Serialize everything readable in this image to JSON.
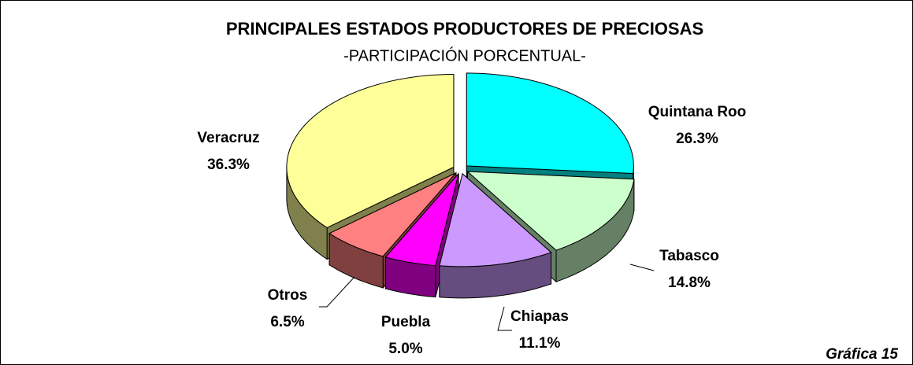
{
  "chart_data": {
    "type": "pie3d",
    "title": "PRINCIPALES ESTADOS PRODUCTORES DE PRECIOSAS",
    "subtitle": "-PARTICIPACIÓN PORCENTUAL-",
    "caption": "Gráfica 15",
    "categories": [
      "Quintana Roo",
      "Tabasco",
      "Chiapas",
      "Puebla",
      "Otros",
      "Veracruz"
    ],
    "values": [
      26.3,
      14.8,
      11.1,
      5.0,
      6.5,
      36.3
    ],
    "value_labels": [
      "26.3%",
      "14.8%",
      "11.1%",
      "5.0%",
      "6.5%",
      "36.3%"
    ],
    "colors": [
      "#00ffff",
      "#ccffcc",
      "#cc99ff",
      "#ff00ff",
      "#ff8080",
      "#ffff99"
    ]
  }
}
